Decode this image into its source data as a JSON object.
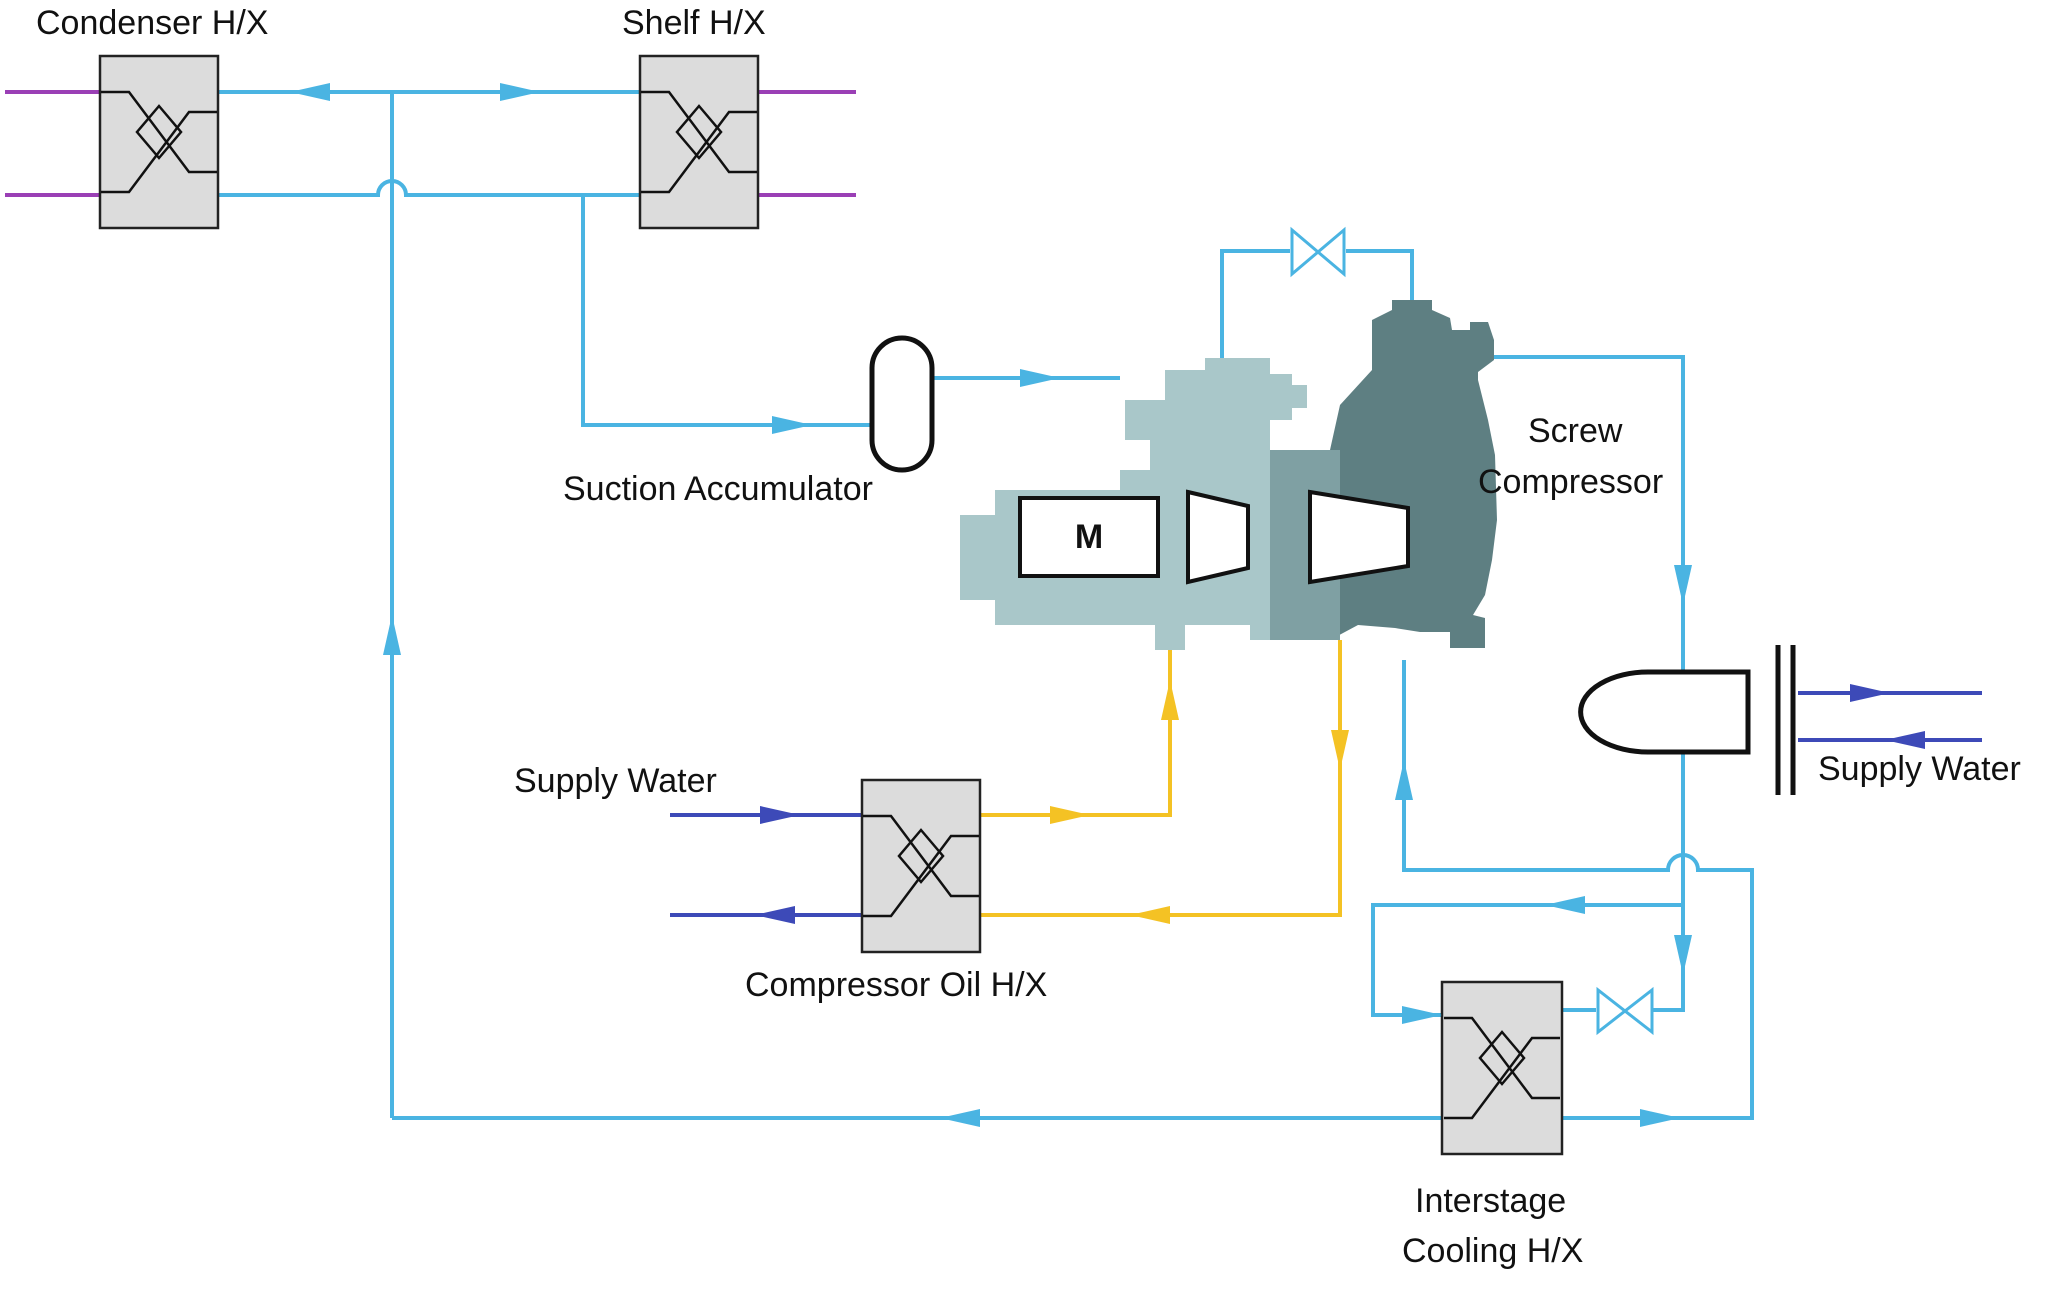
{
  "colors": {
    "pipe_blue": "#4ab4e2",
    "purple": "#9a3fb5",
    "yellow": "#f4c224",
    "navy": "#3d4ab8",
    "hx_fill": "#dcdcdc",
    "compressor_dark": "#5e7f82",
    "compressor_light": "#a9c7c9"
  },
  "labels": {
    "condenser_hx": "Condenser H/X",
    "shelf_hx": "Shelf H/X",
    "suction_accumulator": "Suction Accumulator",
    "screw_compressor_line1": "Screw",
    "screw_compressor_line2": "Compressor",
    "motor": "M",
    "supply_water_left": "Supply Water",
    "supply_water_right": "Supply Water",
    "compressor_oil_hx": "Compressor Oil H/X",
    "interstage_line1": "Interstage",
    "interstage_line2": "Cooling H/X"
  },
  "icons": {
    "heat_exchanger": "heat-exchanger-icon",
    "valve": "valve-icon",
    "arrow": "flow-arrow-icon",
    "accumulator": "accumulator-vessel-icon",
    "condenser": "condenser-vessel-icon"
  }
}
